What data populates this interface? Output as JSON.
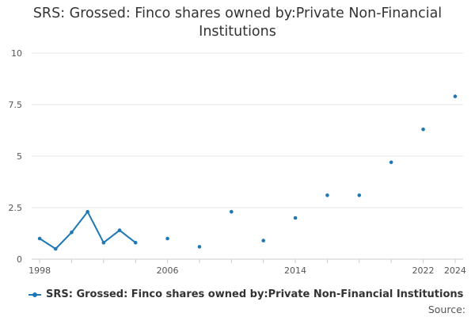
{
  "chart_data": {
    "type": "line",
    "title_lines": [
      "SRS: Grossed: Finco shares owned by:Private Non-Financial",
      "Institutions"
    ],
    "xlabel": "",
    "ylabel": "",
    "x_ticks": [
      "1998",
      "2006",
      "2014",
      "2022",
      "2024"
    ],
    "x_tick_values": [
      1998,
      2006,
      2014,
      2022,
      2024
    ],
    "xlim": [
      1997.5,
      2024.5
    ],
    "y_ticks": [
      "0",
      "2.5",
      "5",
      "7.5",
      "10"
    ],
    "y_tick_values": [
      0,
      2.5,
      5,
      7.5,
      10
    ],
    "ylim": [
      0,
      10
    ],
    "grid": true,
    "legend_position": "bottom",
    "series": [
      {
        "name": "SRS: Grossed: Finco shares owned by:Private Non-Financial Institutions",
        "color": "#1f77b4",
        "x": [
          1998,
          1999,
          2000,
          2001,
          2002,
          2003,
          2004,
          2006,
          2008,
          2010,
          2012,
          2014,
          2016,
          2018,
          2020,
          2022,
          2024
        ],
        "y": [
          1.0,
          0.5,
          1.3,
          2.3,
          0.8,
          1.4,
          0.8,
          1.0,
          0.6,
          2.3,
          0.9,
          2.0,
          3.1,
          3.1,
          4.7,
          6.3,
          7.9
        ]
      }
    ],
    "source_label": "Source:"
  }
}
